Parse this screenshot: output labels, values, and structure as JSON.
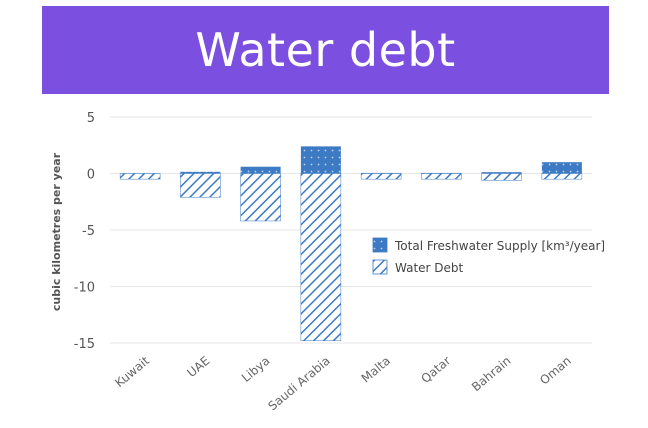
{
  "header": {
    "title": "Water debt"
  },
  "chart_data": {
    "type": "bar",
    "categories": [
      "Kuwait",
      "UAE",
      "Libya",
      "Saudi Arabia",
      "Malta",
      "Qatar",
      "Bahrain",
      "Oman"
    ],
    "series": [
      {
        "name": "Total Freshwater Supply [km³/year]",
        "style": "dotted",
        "values": [
          0.02,
          0.15,
          0.6,
          2.4,
          0.05,
          0.05,
          0.12,
          1.0
        ]
      },
      {
        "name": "Water Debt",
        "style": "hatched",
        "values": [
          -0.5,
          -2.1,
          -4.2,
          -14.8,
          -0.5,
          -0.5,
          -0.6,
          -0.5
        ]
      }
    ],
    "ylabel": "cubic kilometres per year",
    "xlabel": "",
    "ylim": [
      -15,
      5
    ],
    "yticks": [
      5,
      0,
      -5,
      -10,
      -15
    ],
    "grid": true,
    "legend_position": "right",
    "colors": {
      "bar": "#3d7ac4",
      "hatch": "#3d7ac4",
      "grid": "#e6e6e6"
    }
  }
}
